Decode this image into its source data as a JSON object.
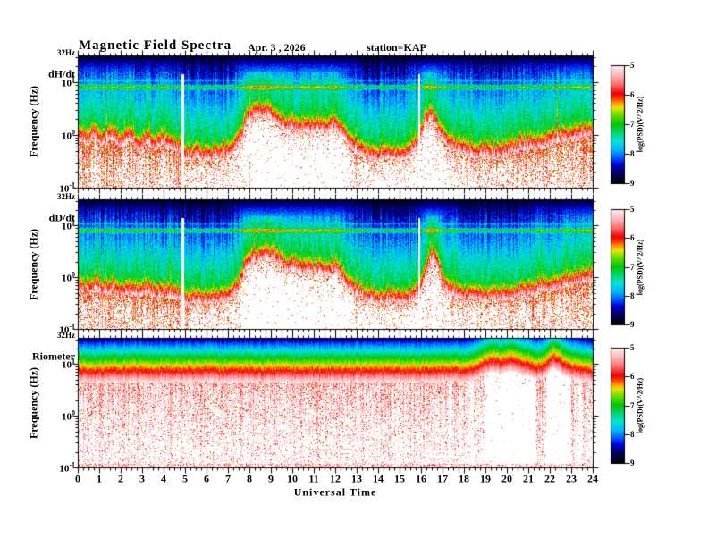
{
  "header": {
    "title": "Magnetic Field Spectra",
    "date": "Apr. 3 , 2026",
    "station": "station=KAP"
  },
  "chart_data": {
    "type": "heatmap",
    "subtype": "frequency-time-spectrogram",
    "title": "Magnetic Field Spectra",
    "date": "Apr. 3 , 2026",
    "station": "KAP",
    "xlabel": "Universal Time",
    "ylabel": "Frequency  (Hz)",
    "x_range_hours": [
      0,
      24
    ],
    "x_minor_step_hours": 0.25,
    "x_tick_labels": [
      "0",
      "1",
      "2",
      "3",
      "4",
      "5",
      "6",
      "7",
      "8",
      "9",
      "10",
      "11",
      "12",
      "13",
      "14",
      "15",
      "16",
      "17",
      "18",
      "19",
      "20",
      "21",
      "22",
      "23",
      "24"
    ],
    "y_log10_range": [
      -1,
      1.505
    ],
    "y_top_label": "32Hz",
    "y_ticks": [
      {
        "base": "10",
        "exp": "1",
        "log10_hz": 1
      },
      {
        "base": "10",
        "exp": "0",
        "log10_hz": 0
      },
      {
        "base": "10",
        "exp": "-1",
        "log10_hz": -1
      }
    ],
    "colorbar": {
      "label": "log(PSD)(V^2/Hz)",
      "range": [
        -9,
        -5
      ],
      "ticks": [
        "-5",
        "-6",
        "-7",
        "-8",
        "-9"
      ],
      "stops": [
        [
          0.0,
          "#000000"
        ],
        [
          0.1,
          "#000073"
        ],
        [
          0.16,
          "#0000e6"
        ],
        [
          0.22,
          "#0064ff"
        ],
        [
          0.28,
          "#00b4ff"
        ],
        [
          0.36,
          "#00e6d2"
        ],
        [
          0.44,
          "#00d264"
        ],
        [
          0.5,
          "#00c800"
        ],
        [
          0.58,
          "#69dc00"
        ],
        [
          0.64,
          "#e6e600"
        ],
        [
          0.68,
          "#ff9b00"
        ],
        [
          0.72,
          "#ff3700"
        ],
        [
          0.76,
          "#f00000"
        ],
        [
          0.84,
          "#ff6e6e"
        ],
        [
          0.92,
          "#ffb9b9"
        ],
        [
          1.0,
          "#ffefef"
        ]
      ]
    },
    "panels": [
      {
        "label": "dH/dt",
        "kind": "magnetic",
        "seed": 20260403,
        "spectral_line_log10hz": 0.9,
        "boundary_log10hz": [
          [
            0,
            -0.08
          ],
          [
            0.4,
            -0.18
          ],
          [
            0.8,
            -0.05
          ],
          [
            1.2,
            -0.2
          ],
          [
            1.6,
            -0.1
          ],
          [
            2,
            -0.25
          ],
          [
            2.4,
            -0.12
          ],
          [
            2.8,
            -0.3
          ],
          [
            3.2,
            -0.18
          ],
          [
            3.6,
            -0.28
          ],
          [
            4,
            -0.2
          ],
          [
            4.4,
            -0.3
          ],
          [
            4.8,
            -0.38
          ],
          [
            5.1,
            -0.5
          ],
          [
            5.6,
            -0.44
          ],
          [
            6,
            -0.5
          ],
          [
            6.5,
            -0.45
          ],
          [
            7,
            -0.42
          ],
          [
            7.5,
            -0.22
          ],
          [
            7.8,
            0.1
          ],
          [
            8.1,
            0.28
          ],
          [
            8.35,
            0.38
          ],
          [
            8.6,
            0.3
          ],
          [
            8.9,
            0.35
          ],
          [
            9.2,
            0.22
          ],
          [
            9.5,
            0.12
          ],
          [
            9.8,
            0.05
          ],
          [
            10.1,
            0.12
          ],
          [
            10.4,
            0.02
          ],
          [
            10.7,
            0.1
          ],
          [
            11,
            0.0
          ],
          [
            11.3,
            0.08
          ],
          [
            11.6,
            0.0
          ],
          [
            11.9,
            0.1
          ],
          [
            12.2,
            0.02
          ],
          [
            12.5,
            -0.12
          ],
          [
            12.8,
            -0.3
          ],
          [
            13.2,
            -0.4
          ],
          [
            13.6,
            -0.46
          ],
          [
            14,
            -0.5
          ],
          [
            14.5,
            -0.46
          ],
          [
            15,
            -0.52
          ],
          [
            15.5,
            -0.42
          ],
          [
            15.9,
            -0.2
          ],
          [
            16.2,
            0.18
          ],
          [
            16.5,
            0.28
          ],
          [
            16.8,
            0.02
          ],
          [
            17.2,
            -0.22
          ],
          [
            17.6,
            -0.32
          ],
          [
            18,
            -0.38
          ],
          [
            18.4,
            -0.44
          ],
          [
            18.8,
            -0.4
          ],
          [
            19.2,
            -0.44
          ],
          [
            19.6,
            -0.4
          ],
          [
            20,
            -0.38
          ],
          [
            20.4,
            -0.32
          ],
          [
            20.8,
            -0.28
          ],
          [
            21.2,
            -0.25
          ],
          [
            21.6,
            -0.28
          ],
          [
            22,
            -0.2
          ],
          [
            22.4,
            -0.16
          ],
          [
            22.8,
            -0.12
          ],
          [
            23.2,
            -0.1
          ],
          [
            23.6,
            -0.06
          ],
          [
            24,
            -0.02
          ]
        ],
        "speckle_density": [
          [
            0,
            0.5
          ],
          [
            4.9,
            0.55
          ],
          [
            5.2,
            0.25
          ],
          [
            7.5,
            0.2
          ],
          [
            7.9,
            0.05
          ],
          [
            12.4,
            0.05
          ],
          [
            12.8,
            0.14
          ],
          [
            15.8,
            0.1
          ],
          [
            16.9,
            0.08
          ],
          [
            17.3,
            0.22
          ],
          [
            19,
            0.28
          ],
          [
            20,
            0.35
          ],
          [
            21,
            0.45
          ],
          [
            22,
            0.5
          ],
          [
            23,
            0.55
          ],
          [
            24,
            0.6
          ]
        ],
        "gaps_hours": [
          [
            4.82,
            4.97
          ],
          [
            15.86,
            15.96
          ]
        ],
        "spikes": [
          [
            1.35,
            1.2
          ],
          [
            2.2,
            0.9
          ],
          [
            3.35,
            0.8
          ],
          [
            5.95,
            1.1
          ],
          [
            8.03,
            0.9
          ],
          [
            11.2,
            0.8
          ],
          [
            12.97,
            1.3
          ],
          [
            16.17,
            1.4
          ],
          [
            20.8,
            0.7
          ],
          [
            22.35,
            1.3
          ]
        ]
      },
      {
        "label": "dD/dt",
        "kind": "magnetic",
        "seed": 7041989,
        "spectral_line_log10hz": 0.9,
        "boundary_log10hz": [
          [
            0,
            -0.25
          ],
          [
            0.4,
            -0.35
          ],
          [
            0.8,
            -0.25
          ],
          [
            1.2,
            -0.38
          ],
          [
            1.6,
            -0.28
          ],
          [
            2,
            -0.4
          ],
          [
            2.4,
            -0.3
          ],
          [
            2.8,
            -0.42
          ],
          [
            3.2,
            -0.32
          ],
          [
            3.6,
            -0.42
          ],
          [
            4,
            -0.35
          ],
          [
            4.4,
            -0.42
          ],
          [
            4.8,
            -0.46
          ],
          [
            5.1,
            -0.55
          ],
          [
            5.6,
            -0.5
          ],
          [
            6,
            -0.55
          ],
          [
            6.5,
            -0.5
          ],
          [
            7,
            -0.46
          ],
          [
            7.5,
            -0.26
          ],
          [
            7.8,
            0.08
          ],
          [
            8.1,
            0.3
          ],
          [
            8.35,
            0.25
          ],
          [
            8.6,
            0.35
          ],
          [
            8.9,
            0.3
          ],
          [
            9.2,
            0.35
          ],
          [
            9.5,
            0.18
          ],
          [
            9.8,
            0.08
          ],
          [
            10.1,
            0.16
          ],
          [
            10.4,
            0.05
          ],
          [
            10.7,
            0.12
          ],
          [
            11,
            0.02
          ],
          [
            11.3,
            0.1
          ],
          [
            11.6,
            0.0
          ],
          [
            11.9,
            0.08
          ],
          [
            12.2,
            0.0
          ],
          [
            12.5,
            -0.15
          ],
          [
            12.8,
            -0.32
          ],
          [
            13.2,
            -0.42
          ],
          [
            13.6,
            -0.48
          ],
          [
            14,
            -0.52
          ],
          [
            14.5,
            -0.48
          ],
          [
            15,
            -0.54
          ],
          [
            15.5,
            -0.48
          ],
          [
            16,
            -0.3
          ],
          [
            16.3,
            0.15
          ],
          [
            16.55,
            0.35
          ],
          [
            16.8,
            0.1
          ],
          [
            17.1,
            -0.28
          ],
          [
            17.5,
            -0.4
          ],
          [
            18,
            -0.46
          ],
          [
            18.5,
            -0.42
          ],
          [
            19,
            -0.48
          ],
          [
            19.5,
            -0.44
          ],
          [
            20,
            -0.46
          ],
          [
            20.5,
            -0.4
          ],
          [
            21,
            -0.36
          ],
          [
            21.5,
            -0.32
          ],
          [
            22,
            -0.28
          ],
          [
            22.5,
            -0.22
          ],
          [
            23,
            -0.18
          ],
          [
            23.5,
            -0.12
          ],
          [
            24,
            -0.08
          ]
        ],
        "speckle_density": [
          [
            0,
            0.45
          ],
          [
            4.9,
            0.5
          ],
          [
            5.2,
            0.22
          ],
          [
            7.5,
            0.18
          ],
          [
            7.9,
            0.05
          ],
          [
            12.5,
            0.05
          ],
          [
            12.9,
            0.12
          ],
          [
            16,
            0.08
          ],
          [
            17.2,
            0.2
          ],
          [
            19,
            0.25
          ],
          [
            20,
            0.3
          ],
          [
            21,
            0.4
          ],
          [
            22,
            0.45
          ],
          [
            23,
            0.5
          ],
          [
            24,
            0.55
          ]
        ],
        "gaps_hours": [
          [
            4.82,
            4.97
          ],
          [
            15.86,
            15.96
          ]
        ],
        "spikes": [
          [
            1.3,
            0.9
          ],
          [
            4.3,
            0.8
          ],
          [
            5.95,
            1.0
          ],
          [
            8.5,
            0.8
          ],
          [
            10.3,
            0.7
          ],
          [
            12.97,
            1.4
          ],
          [
            16.45,
            1.5
          ],
          [
            19.3,
            0.7
          ],
          [
            22.2,
            1.1
          ]
        ]
      },
      {
        "label": "Riometer",
        "kind": "riometer",
        "seed": 424242,
        "band_top_log10hz": [
          [
            0,
            0.64
          ],
          [
            14,
            0.64
          ],
          [
            16,
            0.64
          ],
          [
            17,
            0.65
          ],
          [
            17.5,
            0.66
          ],
          [
            18,
            0.65
          ],
          [
            18.5,
            0.68
          ],
          [
            18.8,
            0.76
          ],
          [
            19.1,
            0.82
          ],
          [
            19.4,
            0.86
          ],
          [
            19.7,
            0.8
          ],
          [
            20,
            0.84
          ],
          [
            20.3,
            0.86
          ],
          [
            20.6,
            0.8
          ],
          [
            20.9,
            0.77
          ],
          [
            21.2,
            0.72
          ],
          [
            21.5,
            0.7
          ],
          [
            21.8,
            0.75
          ],
          [
            22,
            0.84
          ],
          [
            22.2,
            0.9
          ],
          [
            22.4,
            0.86
          ],
          [
            22.6,
            0.78
          ],
          [
            22.9,
            0.72
          ],
          [
            23.2,
            0.68
          ],
          [
            23.6,
            0.65
          ],
          [
            24,
            0.64
          ]
        ],
        "saturated_columns_hours": [
          [
            18.95,
            21.35
          ],
          [
            21.85,
            23.0
          ]
        ],
        "faint_columns_hours": [
          [
            17.25,
            17.4
          ],
          [
            17.75,
            17.9
          ],
          [
            18.25,
            18.45
          ],
          [
            23.3,
            23.5
          ]
        ]
      }
    ]
  }
}
